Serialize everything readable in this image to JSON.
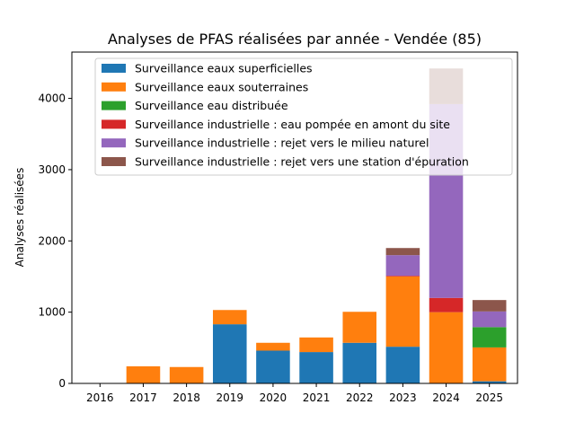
{
  "chart_data": {
    "type": "bar",
    "stacked": true,
    "title": "Analyses de PFAS réalisées par année - Vendée (85)",
    "xlabel": "",
    "ylabel": "Analyses réalisées",
    "ylim": [
      0,
      4650
    ],
    "yticks": [
      0,
      1000,
      2000,
      3000,
      4000
    ],
    "grid": false,
    "legend_position": "top-center",
    "categories": [
      "2016",
      "2017",
      "2018",
      "2019",
      "2020",
      "2021",
      "2022",
      "2023",
      "2024",
      "2025"
    ],
    "series": [
      {
        "name": "Surveillance eaux superficielles",
        "color": "#1f77b4",
        "values": [
          0,
          0,
          0,
          830,
          460,
          440,
          570,
          515,
          0,
          30
        ]
      },
      {
        "name": "Surveillance eaux souterraines",
        "color": "#ff7f0e",
        "values": [
          0,
          240,
          230,
          200,
          110,
          205,
          435,
          985,
          1000,
          475
        ]
      },
      {
        "name": "Surveillance eau distribuée",
        "color": "#2ca02c",
        "values": [
          0,
          0,
          0,
          0,
          0,
          0,
          0,
          0,
          0,
          285
        ]
      },
      {
        "name": "Surveillance industrielle : eau pompée en amont du site",
        "color": "#d62728",
        "values": [
          0,
          0,
          0,
          0,
          0,
          0,
          0,
          10,
          200,
          0
        ]
      },
      {
        "name": "Surveillance industrielle : rejet vers le milieu naturel",
        "color": "#9467bd",
        "values": [
          0,
          0,
          0,
          0,
          0,
          0,
          0,
          290,
          2720,
          220
        ]
      },
      {
        "name": "Surveillance industrielle : rejet vers une station d'épuration",
        "color": "#8c564b",
        "values": [
          0,
          0,
          0,
          0,
          0,
          0,
          0,
          100,
          500,
          160
        ]
      }
    ]
  }
}
